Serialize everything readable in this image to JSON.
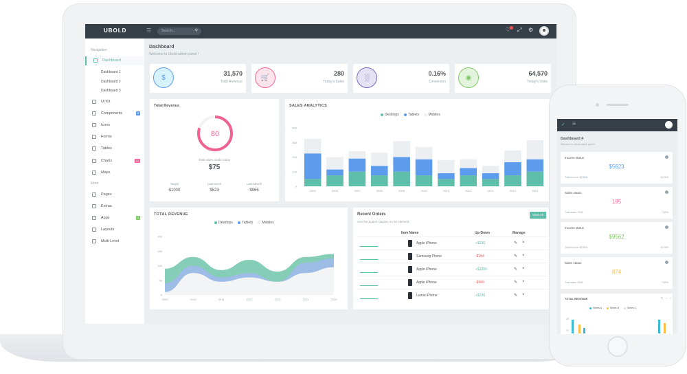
{
  "app": {
    "logo": "UBOLD"
  },
  "topbar": {
    "search_placeholder": "Search..."
  },
  "sidebar": {
    "heading_nav": "Navigation",
    "heading_more": "More",
    "items": [
      {
        "label": "Dashboard",
        "icon": "home-icon",
        "active": true
      },
      {
        "label": "UI Kit",
        "icon": "brush-icon"
      },
      {
        "label": "Components",
        "icon": "bulb-icon",
        "badge": "5",
        "badge_color": "#5d9cec"
      },
      {
        "label": "Icons",
        "icon": "ribbon-icon"
      },
      {
        "label": "Forms",
        "icon": "file-icon"
      },
      {
        "label": "Tables",
        "icon": "table-icon"
      },
      {
        "label": "Charts",
        "icon": "chart-icon",
        "badge": "10",
        "badge_color": "#f76397"
      },
      {
        "label": "Maps",
        "icon": "pin-icon"
      },
      {
        "label": "Pages",
        "icon": "pages-icon"
      },
      {
        "label": "Extras",
        "icon": "gift-icon"
      },
      {
        "label": "Apps",
        "icon": "bag-icon",
        "badge": "3",
        "badge_color": "#81c868"
      },
      {
        "label": "Layouts",
        "icon": "layers-icon"
      },
      {
        "label": "Multi Level",
        "icon": "share-icon"
      }
    ],
    "sub_items": [
      "Dashboard 1",
      "Dashboard 2",
      "Dashboard 3"
    ]
  },
  "page": {
    "title": "Dashboard",
    "subtitle": "Welcome to Ubold admin panel !"
  },
  "stats": [
    {
      "value": "31,570",
      "label": "Total Revenue",
      "icon": "$",
      "color": "#5d9cec",
      "bg": "#d6f3fb"
    },
    {
      "value": "280",
      "label": "Today's Sales",
      "icon": "cart",
      "color": "#f76397",
      "bg": "#fde3ec"
    },
    {
      "value": "0.16%",
      "label": "Conversion",
      "icon": "bars",
      "color": "#7266ba",
      "bg": "#e5e2f4"
    },
    {
      "value": "64,570",
      "label": "Today's Visits",
      "icon": "eye",
      "color": "#81c868",
      "bg": "#e3f4dc"
    }
  ],
  "total_revenue": {
    "title": "Total Revenue",
    "gauge_value": "80",
    "gauge_percent": 80,
    "caption": "Total sales made today",
    "amount": "$75",
    "cols": [
      {
        "label": "Target",
        "value": "$1000"
      },
      {
        "label": "Last week",
        "value": "$523"
      },
      {
        "label": "Last Month",
        "value": "$965"
      }
    ]
  },
  "sales_analytics": {
    "title": "SALES ANALYTICS",
    "legend": [
      "Desktops",
      "Tablets",
      "Mobiles"
    ],
    "colors": [
      "#5fbeaa",
      "#5d9cec",
      "#ebeff2"
    ]
  },
  "revenue_area": {
    "title": "TOTAL REVENUE",
    "legend": [
      "Desktops",
      "Tablets",
      "Mobiles"
    ]
  },
  "chart_data": [
    {
      "type": "bar",
      "title": "SALES ANALYTICS",
      "categories": [
        "2005",
        "2006",
        "2007",
        "2008",
        "2009",
        "2010",
        "2011",
        "2012",
        "2013",
        "2014",
        "2015"
      ],
      "ylim": [
        0,
        400
      ],
      "yticks": [
        "0",
        "100",
        "200",
        "300",
        "400"
      ],
      "series": [
        {
          "name": "Desktops",
          "values": [
            50,
            75,
            100,
            75,
            100,
            75,
            50,
            75,
            50,
            75,
            100
          ]
        },
        {
          "name": "Tablets",
          "values": [
            175,
            40,
            90,
            65,
            100,
            110,
            40,
            50,
            40,
            90,
            85
          ]
        },
        {
          "name": "Mobiles",
          "values": [
            100,
            85,
            50,
            90,
            110,
            85,
            90,
            60,
            50,
            80,
            130
          ]
        }
      ]
    },
    {
      "type": "area",
      "title": "TOTAL REVENUE",
      "categories": [
        "2009",
        "2010",
        "2011",
        "2012",
        "2013",
        "2014",
        "2015"
      ],
      "ylim": [
        0,
        200
      ],
      "yticks": [
        "0",
        "50",
        "100",
        "150",
        "200"
      ],
      "series": [
        {
          "name": "Desktops",
          "values": [
            10,
            75,
            45,
            60,
            45,
            75,
            95
          ]
        },
        {
          "name": "Tablets",
          "values": [
            40,
            100,
            60,
            75,
            45,
            110,
            125
          ]
        },
        {
          "name": "Mobiles",
          "values": [
            90,
            130,
            85,
            120,
            80,
            130,
            140
          ]
        }
      ]
    }
  ],
  "orders": {
    "title": "Recent Orders",
    "subtitle": "Use the button classes on an element.",
    "view_all": "View All",
    "headers": [
      "Item Name",
      "Up-Down",
      "Manage"
    ],
    "rows": [
      {
        "item": "Apple iPhone",
        "updown": "+$230",
        "trend": "up"
      },
      {
        "item": "Samsung Phone",
        "updown": "-$154",
        "trend": "down"
      },
      {
        "item": "Apple iPhone",
        "updown": "+$1850",
        "trend": "up"
      },
      {
        "item": "Apple iPhone",
        "updown": "-$560",
        "trend": "down"
      },
      {
        "item": "Lumia iPhone",
        "updown": "+$230",
        "trend": "up"
      }
    ]
  },
  "mobile": {
    "title": "Dashboard 4",
    "subtitle": "Welcome to Ubold admin panel !",
    "cards": [
      {
        "title": "Income status",
        "value": "$5623",
        "color": "#5d9cec",
        "bottom": "Total income: $22506",
        "right": "10.25%"
      },
      {
        "title": "Sales status",
        "value": "185",
        "color": "#f76397",
        "bottom": "Total sales: 2398",
        "right": "7.85%"
      },
      {
        "title": "Income status",
        "value": "$9562",
        "color": "#81c868",
        "bottom": "Total income: $22506",
        "right": "10.25%"
      },
      {
        "title": "Sales status",
        "value": "874",
        "color": "#ffbd4a",
        "bottom": "Total sales: 2398",
        "right": "7.85%"
      }
    ],
    "revenue_title": "TOTAL REVENUE",
    "revenue_legend": [
      "Series A",
      "Series B",
      "Series C"
    ],
    "revenue_ticks": [
      "15",
      "10"
    ]
  }
}
